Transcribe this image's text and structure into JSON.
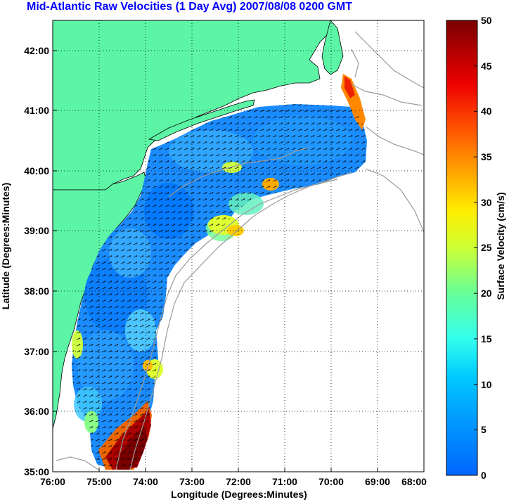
{
  "title": "Mid-Atlantic Raw Velocities (1 Day Avg) 2007/08/08 0200 GMT",
  "axes": {
    "xlabel": "Longitude (Degrees:Minutes)",
    "ylabel": "Latitude (Degrees:Minutes)",
    "x_ticks": [
      "76:00",
      "75:00",
      "74:00",
      "73:00",
      "72:00",
      "71:00",
      "70:00",
      "69:00",
      "68:00"
    ],
    "y_ticks": [
      "42:00",
      "41:00",
      "40:00",
      "39:00",
      "38:00",
      "37:00",
      "36:00",
      "35:00"
    ],
    "xlim": [
      -76,
      -68
    ],
    "ylim": [
      35,
      42.5
    ]
  },
  "colorbar": {
    "label": "Surface Velocity (cm/s)",
    "ticks": [
      "0",
      "5",
      "10",
      "15",
      "20",
      "25",
      "30",
      "35",
      "40",
      "45",
      "50"
    ],
    "range": [
      0,
      50
    ],
    "colormap": "jet"
  },
  "colors": {
    "land": "#5cf5a6",
    "grid": "#000000",
    "title": "#0000ff",
    "bathymetry": "#9a9a9a"
  }
}
